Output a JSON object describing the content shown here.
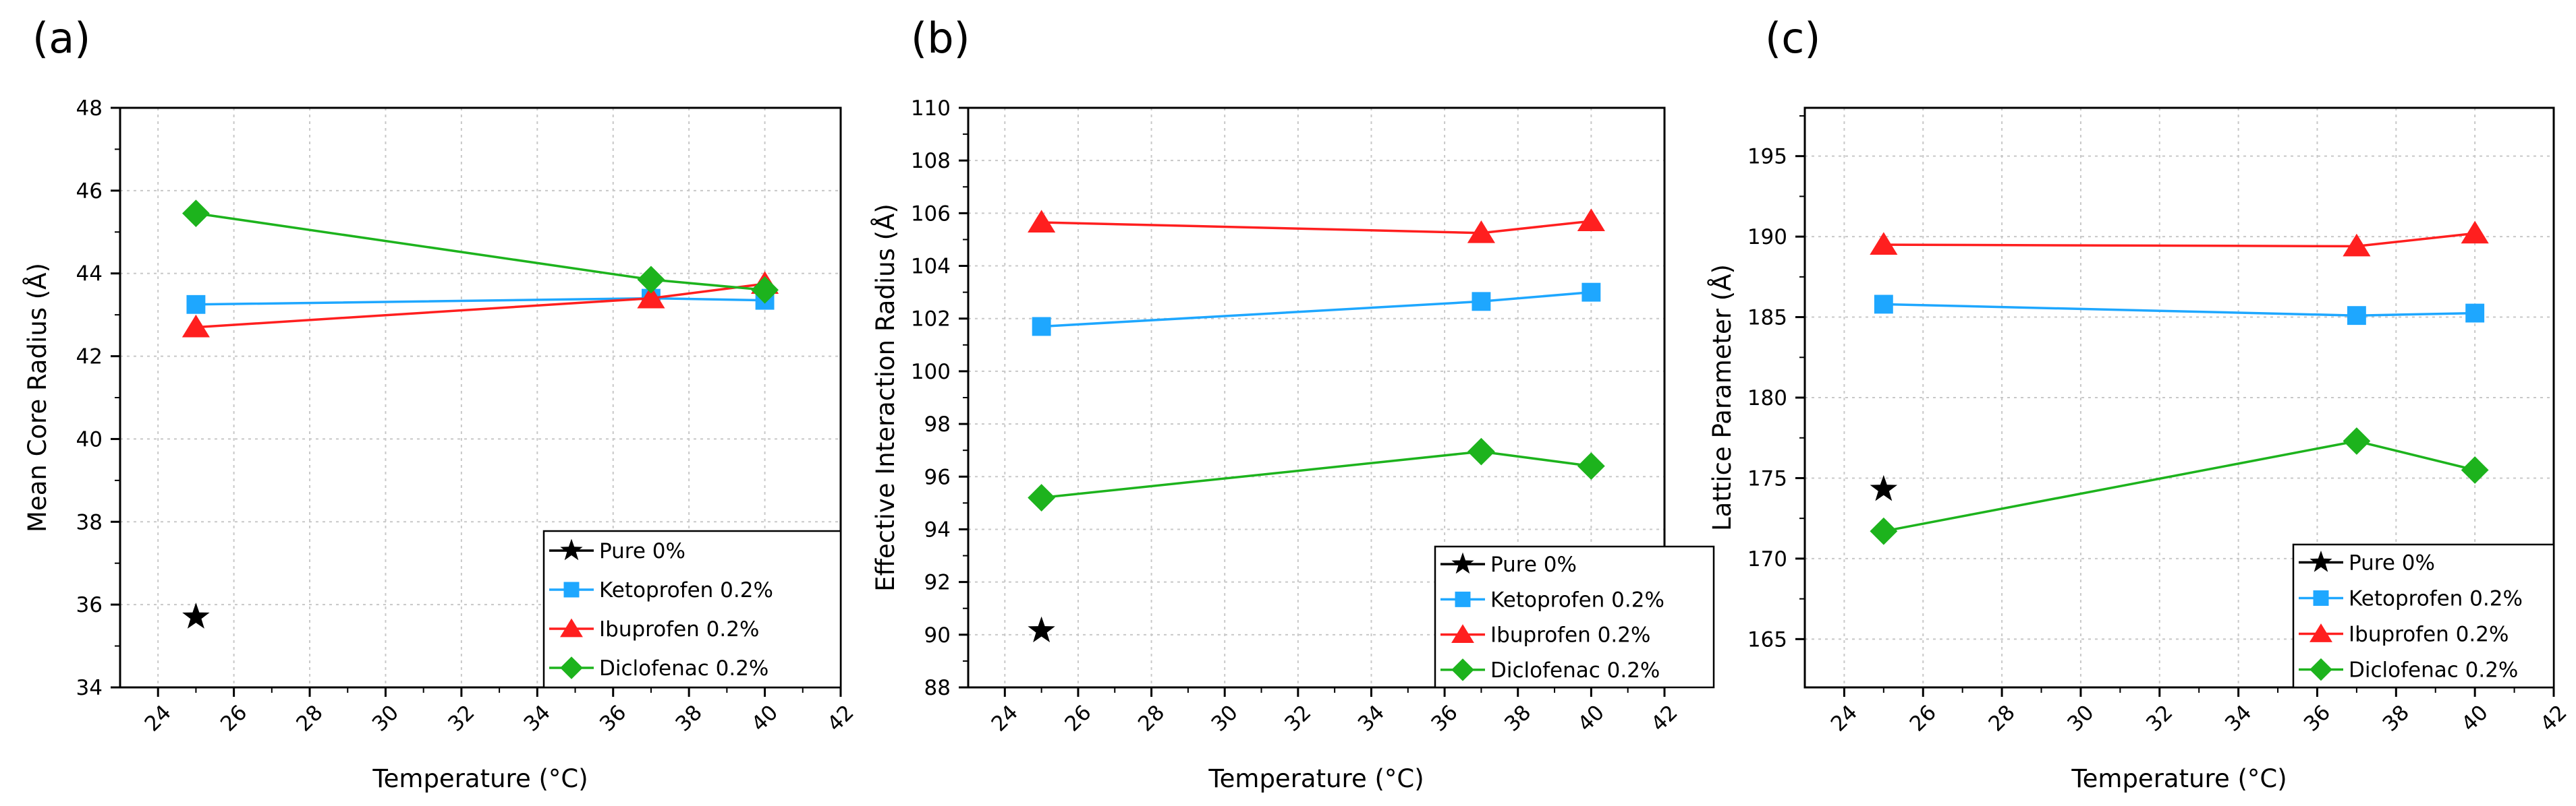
{
  "chart_data": [
    {
      "type": "line",
      "panel_label": "(a)",
      "xlabel": "Temperature (°C)",
      "ylabel": "Mean Core Radius (Å)",
      "xlim": [
        23,
        42
      ],
      "ylim": [
        34,
        48
      ],
      "xticks": [
        24,
        26,
        28,
        30,
        32,
        34,
        36,
        38,
        40,
        42
      ],
      "yticks": [
        34,
        36,
        38,
        40,
        42,
        44,
        46,
        48
      ],
      "grid": true,
      "legend_position": "bottom-right",
      "series": [
        {
          "name": "Pure 0%",
          "marker": "star",
          "color": "#000000",
          "x": [
            25
          ],
          "y": [
            35.7
          ]
        },
        {
          "name": "Ketoprofen 0.2%",
          "marker": "square",
          "color": "#1ea7ff",
          "x": [
            25,
            37,
            40
          ],
          "y": [
            43.25,
            43.4,
            43.35
          ]
        },
        {
          "name": "Ibuprofen 0.2%",
          "marker": "triangle",
          "color": "#ff1f1f",
          "x": [
            25,
            37,
            40
          ],
          "y": [
            42.7,
            43.4,
            43.75
          ]
        },
        {
          "name": "Diclofenac 0.2%",
          "marker": "diamond",
          "color": "#1db31d",
          "x": [
            25,
            37,
            40
          ],
          "y": [
            45.45,
            43.85,
            43.6
          ]
        }
      ]
    },
    {
      "type": "line",
      "panel_label": "(b)",
      "xlabel": "Temperature (°C)",
      "ylabel": "Effective Interaction Radius (Å)",
      "xlim": [
        23,
        42
      ],
      "ylim": [
        88,
        110
      ],
      "xticks": [
        24,
        26,
        28,
        30,
        32,
        34,
        36,
        38,
        40,
        42
      ],
      "yticks": [
        88,
        90,
        92,
        94,
        96,
        98,
        100,
        102,
        104,
        106,
        108,
        110
      ],
      "grid": true,
      "legend_position": "bottom-right",
      "series": [
        {
          "name": "Pure 0%",
          "marker": "star",
          "color": "#000000",
          "x": [
            25
          ],
          "y": [
            90.15
          ]
        },
        {
          "name": "Ketoprofen 0.2%",
          "marker": "square",
          "color": "#1ea7ff",
          "x": [
            25,
            37,
            40
          ],
          "y": [
            101.7,
            102.65,
            103.0
          ]
        },
        {
          "name": "Ibuprofen 0.2%",
          "marker": "triangle",
          "color": "#ff1f1f",
          "x": [
            25,
            37,
            40
          ],
          "y": [
            105.65,
            105.25,
            105.7
          ]
        },
        {
          "name": "Diclofenac 0.2%",
          "marker": "diamond",
          "color": "#1db31d",
          "x": [
            25,
            37,
            40
          ],
          "y": [
            95.2,
            96.95,
            96.4
          ]
        }
      ]
    },
    {
      "type": "line",
      "panel_label": "(c)",
      "xlabel": "Temperature (°C)",
      "ylabel": "Lattice Parameter (Å)",
      "xlim": [
        23,
        42
      ],
      "ylim": [
        162,
        198
      ],
      "xticks": [
        24,
        26,
        28,
        30,
        32,
        34,
        36,
        38,
        40,
        42
      ],
      "yticks": [
        165,
        170,
        175,
        180,
        185,
        190,
        195
      ],
      "grid": true,
      "legend_position": "bottom-right",
      "series": [
        {
          "name": "Pure 0%",
          "marker": "star",
          "color": "#000000",
          "x": [
            25
          ],
          "y": [
            174.3
          ]
        },
        {
          "name": "Ketoprofen 0.2%",
          "marker": "square",
          "color": "#1ea7ff",
          "x": [
            25,
            37,
            40
          ],
          "y": [
            185.8,
            185.1,
            185.25
          ]
        },
        {
          "name": "Ibuprofen 0.2%",
          "marker": "triangle",
          "color": "#ff1f1f",
          "x": [
            25,
            37,
            40
          ],
          "y": [
            189.5,
            189.4,
            190.2
          ]
        },
        {
          "name": "Diclofenac 0.2%",
          "marker": "diamond",
          "color": "#1db31d",
          "x": [
            25,
            37,
            40
          ],
          "y": [
            171.7,
            177.3,
            175.5
          ]
        }
      ]
    }
  ]
}
